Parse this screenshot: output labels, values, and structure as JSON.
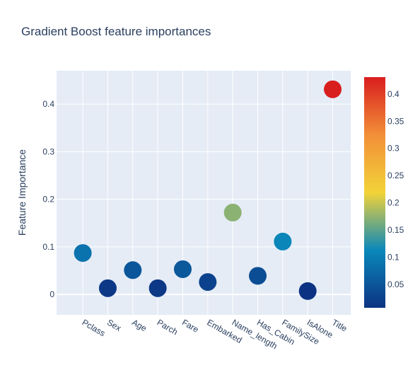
{
  "chart_data": {
    "type": "scatter",
    "title": "Gradient Boost feature importances",
    "xlabel": "",
    "ylabel": "Feature Importance",
    "categories": [
      "Pclass",
      "Sex",
      "Age",
      "Parch",
      "Fare",
      "Embarked",
      "Name_length",
      "Has_Cabin",
      "FamilySize",
      "IsAlone",
      "Title"
    ],
    "values": [
      0.087,
      0.013,
      0.051,
      0.013,
      0.053,
      0.026,
      0.172,
      0.039,
      0.111,
      0.007,
      0.431
    ],
    "ylim": [
      -0.043,
      0.47
    ],
    "yticks": [
      0,
      0.1,
      0.2,
      0.3,
      0.4
    ],
    "ytick_labels": [
      "0",
      "0.1",
      "0.2",
      "0.3",
      "0.4"
    ],
    "grid": true,
    "plot_background": "#e5ecf6",
    "colorscale": "Portland",
    "colorbar": {
      "range": [
        0.007,
        0.431
      ],
      "ticks": [
        0.05,
        0.1,
        0.15,
        0.2,
        0.25,
        0.3,
        0.35,
        0.4
      ],
      "tick_labels": [
        "0.05",
        "0.1",
        "0.15",
        "0.2",
        "0.25",
        "0.3",
        "0.35",
        "0.4"
      ],
      "stops": [
        {
          "pos": 0.0,
          "color": "#0c3383"
        },
        {
          "pos": 0.25,
          "color": "#0a88ba"
        },
        {
          "pos": 0.5,
          "color": "#f2d338"
        },
        {
          "pos": 0.75,
          "color": "#f28f38"
        },
        {
          "pos": 1.0,
          "color": "#d91e1e"
        }
      ]
    }
  }
}
